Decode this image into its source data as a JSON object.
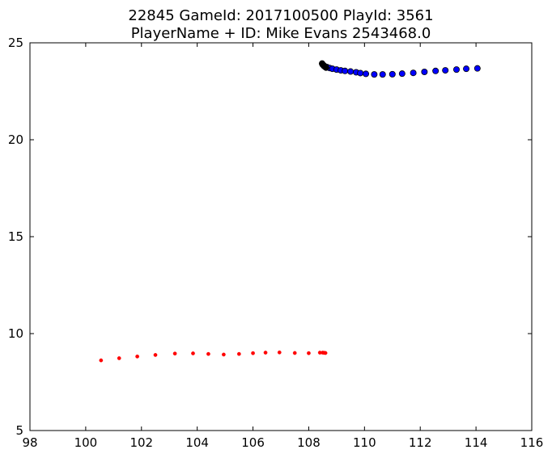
{
  "chart_data": {
    "type": "scatter",
    "title_line1": "22845 GameId: 2017100500 PlayId: 3561",
    "title_line2": "PlayerName + ID: Mike Evans 2543468.0",
    "xlim": [
      98,
      116
    ],
    "ylim": [
      5,
      25
    ],
    "xticks": [
      98,
      100,
      102,
      104,
      106,
      108,
      110,
      112,
      114,
      116
    ],
    "yticks": [
      5,
      10,
      15,
      20,
      25
    ],
    "grid": false,
    "series": [
      {
        "color": "#0000ff",
        "marker": "circle-large",
        "x": [
          108.55,
          108.65,
          108.75,
          108.85,
          109.0,
          109.15,
          109.3,
          109.5,
          109.7,
          109.85,
          110.05,
          110.35,
          110.65,
          111.0,
          111.35,
          111.75,
          112.15,
          112.55,
          112.9,
          113.3,
          113.65,
          114.05
        ],
        "y": [
          23.82,
          23.75,
          23.7,
          23.66,
          23.62,
          23.58,
          23.55,
          23.52,
          23.48,
          23.44,
          23.4,
          23.37,
          23.37,
          23.38,
          23.41,
          23.45,
          23.5,
          23.55,
          23.58,
          23.62,
          23.66,
          23.68
        ]
      },
      {
        "color": "#000000",
        "marker": "circle-large",
        "x": [
          108.48,
          108.5,
          108.52,
          108.55,
          108.58,
          108.62
        ],
        "y": [
          23.93,
          23.88,
          23.85,
          23.8,
          23.77,
          23.72
        ]
      },
      {
        "color": "#ff0000",
        "marker": "circle-small",
        "x": [
          100.55,
          101.2,
          101.85,
          102.5,
          103.2,
          103.85,
          104.4,
          104.95,
          105.5,
          106.0,
          106.45,
          106.95,
          107.5,
          108.0,
          108.4,
          108.5,
          108.55,
          108.6
        ],
        "y": [
          8.62,
          8.73,
          8.82,
          8.9,
          8.97,
          8.98,
          8.95,
          8.92,
          8.95,
          8.99,
          9.02,
          9.03,
          9.0,
          8.99,
          9.02,
          9.02,
          9.01,
          9.0
        ]
      }
    ]
  }
}
